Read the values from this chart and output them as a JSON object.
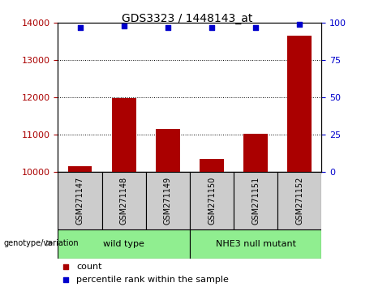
{
  "title": "GDS3323 / 1448143_at",
  "samples": [
    "GSM271147",
    "GSM271148",
    "GSM271149",
    "GSM271150",
    "GSM271151",
    "GSM271152"
  ],
  "counts": [
    10150,
    11980,
    11150,
    10350,
    11020,
    13650
  ],
  "percentile_ranks": [
    97,
    98,
    97,
    97,
    97,
    99
  ],
  "ylim_left": [
    10000,
    14000
  ],
  "ylim_right": [
    0,
    100
  ],
  "yticks_left": [
    10000,
    11000,
    12000,
    13000,
    14000
  ],
  "yticks_right": [
    0,
    25,
    50,
    75,
    100
  ],
  "bar_color": "#aa0000",
  "dot_color": "#0000cc",
  "groups": [
    {
      "label": "wild type",
      "start": 0,
      "end": 3,
      "color": "#90ee90"
    },
    {
      "label": "NHE3 null mutant",
      "start": 3,
      "end": 6,
      "color": "#90ee90"
    }
  ],
  "group_label_prefix": "genotype/variation",
  "legend_count_label": "count",
  "legend_percentile_label": "percentile rank within the sample",
  "sample_box_color": "#cccccc",
  "title_fontsize": 10,
  "axis_fontsize": 8,
  "label_fontsize": 7,
  "group_fontsize": 8
}
